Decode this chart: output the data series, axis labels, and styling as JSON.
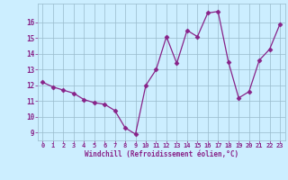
{
  "x": [
    0,
    1,
    2,
    3,
    4,
    5,
    6,
    7,
    8,
    9,
    10,
    11,
    12,
    13,
    14,
    15,
    16,
    17,
    18,
    19,
    20,
    21,
    22,
    23
  ],
  "y": [
    12.2,
    11.9,
    11.7,
    11.5,
    11.1,
    10.9,
    10.8,
    10.4,
    9.3,
    8.9,
    12.0,
    13.0,
    15.1,
    13.4,
    15.5,
    15.1,
    16.6,
    16.7,
    13.5,
    11.2,
    11.6,
    13.6,
    14.3,
    15.9
  ],
  "line_color": "#882288",
  "marker": "D",
  "marker_size": 2.5,
  "bg_color": "#cceeff",
  "grid_color": "#99bbcc",
  "xlabel": "Windchill (Refroidissement éolien,°C)",
  "tick_color": "#882288",
  "ylim_min": 8.5,
  "ylim_max": 17.2,
  "xlim_min": -0.5,
  "xlim_max": 23.5,
  "yticks": [
    9,
    10,
    11,
    12,
    13,
    14,
    15,
    16
  ],
  "xticks": [
    0,
    1,
    2,
    3,
    4,
    5,
    6,
    7,
    8,
    9,
    10,
    11,
    12,
    13,
    14,
    15,
    16,
    17,
    18,
    19,
    20,
    21,
    22,
    23
  ]
}
